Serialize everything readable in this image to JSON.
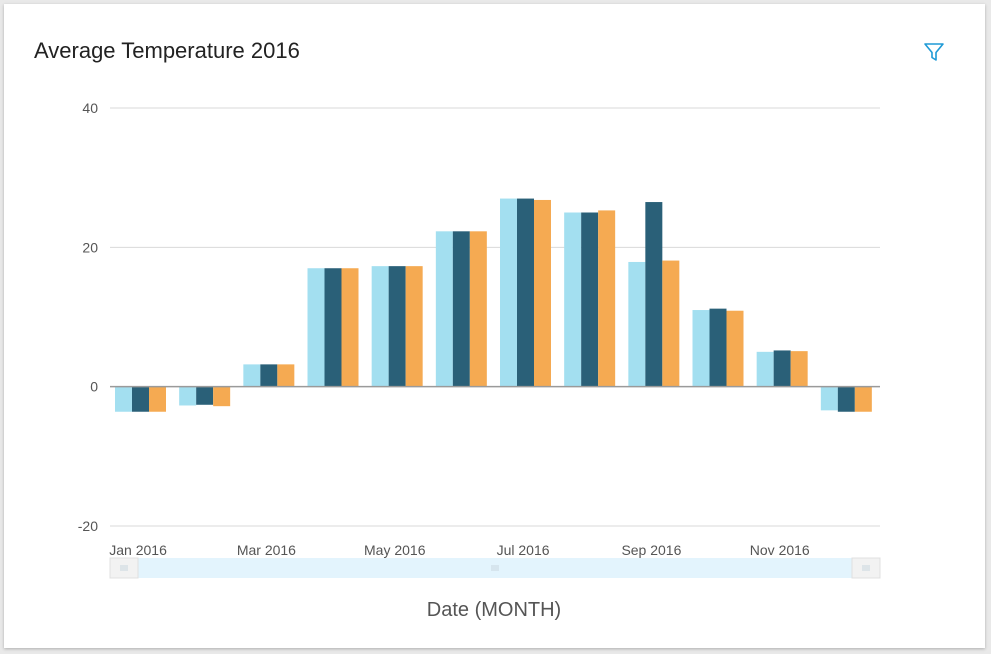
{
  "card": {
    "title": "Average Temperature 2016",
    "filter_icon": "filter-icon"
  },
  "chart_data": {
    "type": "bar",
    "title": "Average Temperature 2016",
    "xlabel": "Date (MONTH)",
    "ylabel": "",
    "ylim": [
      -20,
      40
    ],
    "yticks": [
      -20,
      0,
      20,
      40
    ],
    "x_tick_labels": [
      "Jan 2016",
      "Mar 2016",
      "May 2016",
      "Jul 2016",
      "Sep 2016",
      "Nov 2016"
    ],
    "categories": [
      "Jan 2016",
      "Feb 2016",
      "Mar 2016",
      "Apr 2016",
      "May 2016",
      "Jun 2016",
      "Jul 2016",
      "Aug 2016",
      "Sep 2016",
      "Oct 2016",
      "Nov 2016",
      "Dec 2016"
    ],
    "grid": true,
    "legend": "none",
    "series": [
      {
        "color": "#a3dff0",
        "values": [
          -3.6,
          -2.7,
          3.2,
          17.0,
          17.3,
          22.3,
          27.0,
          25.0,
          17.9,
          11.0,
          5.0,
          -3.4
        ]
      },
      {
        "color": "#2a6078",
        "values": [
          -3.6,
          -2.6,
          3.2,
          17.0,
          17.3,
          22.3,
          27.0,
          25.0,
          26.5,
          11.2,
          5.2,
          -3.6
        ]
      },
      {
        "color": "#f5aa52",
        "values": [
          -3.6,
          -2.8,
          3.2,
          17.0,
          17.3,
          22.3,
          26.8,
          25.3,
          18.1,
          10.9,
          5.1,
          -3.6
        ]
      }
    ],
    "range_slider": {
      "start_fraction": 0.0,
      "end_fraction": 1.0
    }
  }
}
